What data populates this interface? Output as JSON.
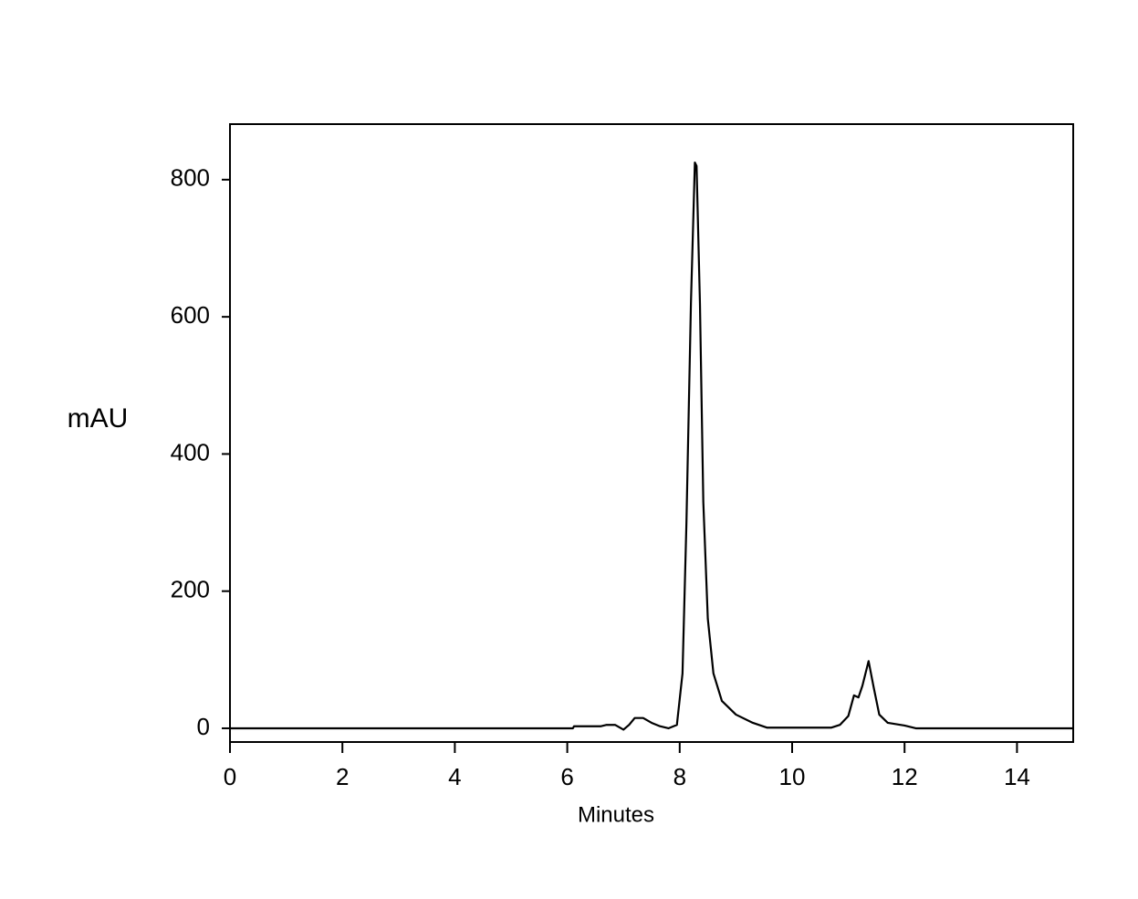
{
  "chart_data": {
    "type": "line",
    "x_label": "Minutes",
    "y_label": "mAU",
    "x": [
      0,
      6.1,
      6.12,
      6.6,
      6.7,
      6.85,
      7.0,
      7.1,
      7.2,
      7.35,
      7.5,
      7.65,
      7.8,
      7.95,
      8.05,
      8.12,
      8.2,
      8.27,
      8.3,
      8.36,
      8.42,
      8.5,
      8.6,
      8.75,
      9.0,
      9.3,
      9.55,
      10.7,
      10.85,
      11.0,
      11.1,
      11.18,
      11.25,
      11.36,
      11.45,
      11.55,
      11.7,
      12.0,
      12.2,
      15
    ],
    "series": [
      {
        "color": "#000000",
        "values": [
          0,
          0,
          3,
          3,
          5,
          5,
          -2,
          5,
          15,
          15,
          8,
          3,
          0,
          5,
          80,
          300,
          620,
          825,
          820,
          620,
          330,
          160,
          80,
          40,
          20,
          8,
          1,
          1,
          5,
          18,
          48,
          45,
          62,
          98,
          60,
          20,
          8,
          4,
          0,
          0
        ]
      }
    ],
    "xlim": [
      0,
      15
    ],
    "ylim": [
      -20,
      881
    ],
    "xticks": [
      0,
      2,
      4,
      6,
      8,
      10,
      12,
      14
    ],
    "yticks": [
      0,
      200,
      400,
      600,
      800
    ],
    "grid": false
  }
}
